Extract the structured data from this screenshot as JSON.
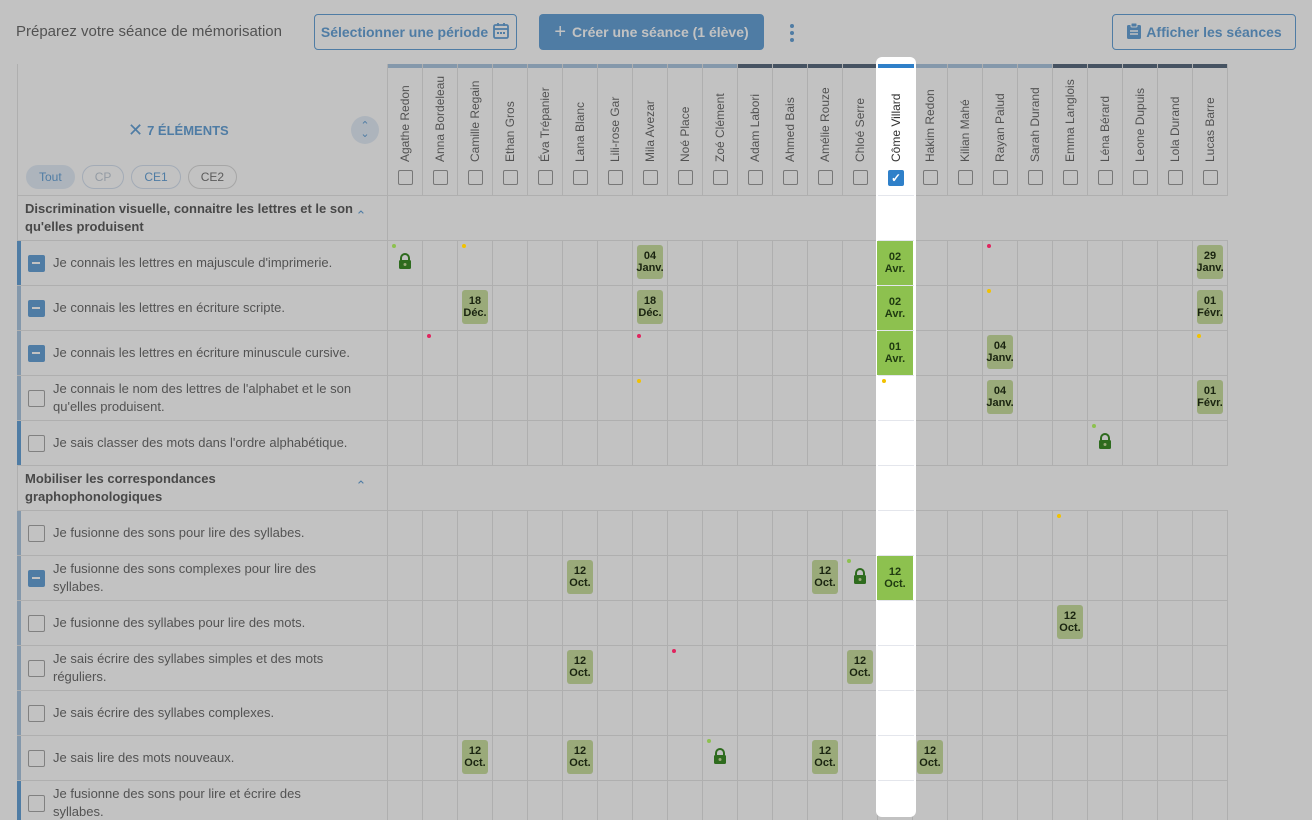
{
  "header": {
    "title": "Préparez votre séance de mémorisation",
    "select_period": "Sélectionner une période",
    "create_session": "Créer une séance (1 élève)",
    "show_sessions": "Afficher les séances"
  },
  "panel": {
    "elements_label": "7 ÉLÉMENTS",
    "filters": [
      "Tout",
      "CP",
      "CE1",
      "CE2"
    ]
  },
  "students": [
    "Agathe Redon",
    "Anna Bordeleau",
    "Camille Regain",
    "Ethan Gros",
    "Éva Trépanier",
    "Lana Blanc",
    "Lili-rose Gar",
    "Mila Avezar",
    "Noé Place",
    "Zoé Clément",
    "Adam Labori",
    "Ahmed Bais",
    "Amélie Rouze",
    "Chloé Serre",
    "Côme Villard",
    "Hakim Redon",
    "Kilian Mahé",
    "Rayan Palud",
    "Sarah Durand",
    "Emma Langlois",
    "Léna Bérard",
    "Leone Dupuis",
    "Lola Durand",
    "Lucas Barre"
  ],
  "selected_student_index": 14,
  "rows": [
    {
      "type": "group",
      "label": "Discrimination visuelle, connaitre les lettres et le son qu'elles produisent"
    },
    {
      "type": "item",
      "label": "Je connais les lettres en majuscule d'imprimerie.",
      "state": "indeterminate"
    },
    {
      "type": "item",
      "label": "Je connais les lettres en écriture scripte.",
      "state": "indeterminate"
    },
    {
      "type": "item",
      "label": "Je connais les lettres en écriture minuscule cursive.",
      "state": "indeterminate"
    },
    {
      "type": "item",
      "label": "Je connais le nom des lettres de l'alphabet et le son qu'elles produisent.",
      "state": "unchecked"
    },
    {
      "type": "item",
      "label": "Je sais classer des mots dans l'ordre alphabétique.",
      "state": "unchecked"
    },
    {
      "type": "group",
      "label": "Mobiliser les correspondances graphophonologiques"
    },
    {
      "type": "item",
      "label": "Je fusionne des sons pour lire des syllabes.",
      "state": "unchecked"
    },
    {
      "type": "item",
      "label": "Je fusionne des sons complexes pour lire des syllabes.",
      "state": "indeterminate"
    },
    {
      "type": "item",
      "label": "Je fusionne des syllabes pour lire des mots.",
      "state": "unchecked"
    },
    {
      "type": "item",
      "label": "Je sais écrire des syllabes simples et des mots réguliers.",
      "state": "unchecked"
    },
    {
      "type": "item",
      "label": "Je sais écrire des syllabes complexes.",
      "state": "unchecked"
    },
    {
      "type": "item",
      "label": "Je sais lire des mots nouveaux.",
      "state": "unchecked"
    },
    {
      "type": "item",
      "label": "Je fusionne des sons pour lire et écrire des syllabes.",
      "state": "unchecked"
    }
  ],
  "badges": [
    {
      "row": 1,
      "col": 7,
      "day": "04",
      "month": "Janv."
    },
    {
      "row": 1,
      "col": 14,
      "day": "02",
      "month": "Avr."
    },
    {
      "row": 1,
      "col": 23,
      "day": "29",
      "month": "Janv."
    },
    {
      "row": 2,
      "col": 2,
      "day": "18",
      "month": "Déc."
    },
    {
      "row": 2,
      "col": 7,
      "day": "18",
      "month": "Déc."
    },
    {
      "row": 2,
      "col": 14,
      "day": "02",
      "month": "Avr."
    },
    {
      "row": 2,
      "col": 23,
      "day": "01",
      "month": "Févr."
    },
    {
      "row": 3,
      "col": 14,
      "day": "01",
      "month": "Avr."
    },
    {
      "row": 3,
      "col": 17,
      "day": "04",
      "month": "Janv."
    },
    {
      "row": 4,
      "col": 17,
      "day": "04",
      "month": "Janv."
    },
    {
      "row": 4,
      "col": 23,
      "day": "01",
      "month": "Févr."
    },
    {
      "row": 8,
      "col": 5,
      "day": "12",
      "month": "Oct."
    },
    {
      "row": 8,
      "col": 12,
      "day": "12",
      "month": "Oct."
    },
    {
      "row": 8,
      "col": 14,
      "day": "12",
      "month": "Oct."
    },
    {
      "row": 9,
      "col": 19,
      "day": "12",
      "month": "Oct."
    },
    {
      "row": 10,
      "col": 5,
      "day": "12",
      "month": "Oct."
    },
    {
      "row": 10,
      "col": 13,
      "day": "12",
      "month": "Oct."
    },
    {
      "row": 12,
      "col": 2,
      "day": "12",
      "month": "Oct."
    },
    {
      "row": 12,
      "col": 5,
      "day": "12",
      "month": "Oct."
    },
    {
      "row": 12,
      "col": 12,
      "day": "12",
      "month": "Oct."
    },
    {
      "row": 12,
      "col": 15,
      "day": "12",
      "month": "Oct."
    }
  ],
  "locks": [
    {
      "row": 1,
      "col": 0
    },
    {
      "row": 5,
      "col": 20
    },
    {
      "row": 8,
      "col": 13
    },
    {
      "row": 12,
      "col": 9
    }
  ],
  "dots": [
    {
      "row": 1,
      "col": 0,
      "color": "#8dc14f"
    },
    {
      "row": 1,
      "col": 2,
      "color": "#f2c200"
    },
    {
      "row": 1,
      "col": 17,
      "color": "#e0245e"
    },
    {
      "row": 2,
      "col": 17,
      "color": "#f2c200"
    },
    {
      "row": 3,
      "col": 1,
      "color": "#e0245e"
    },
    {
      "row": 3,
      "col": 7,
      "color": "#e0245e"
    },
    {
      "row": 3,
      "col": 23,
      "color": "#f2c200"
    },
    {
      "row": 4,
      "col": 7,
      "color": "#f2c200"
    },
    {
      "row": 4,
      "col": 14,
      "color": "#f2c200"
    },
    {
      "row": 5,
      "col": 20,
      "color": "#8dc14f"
    },
    {
      "row": 7,
      "col": 19,
      "color": "#f2c200"
    },
    {
      "row": 8,
      "col": 13,
      "color": "#8dc14f"
    },
    {
      "row": 10,
      "col": 8,
      "color": "#e0245e"
    },
    {
      "row": 12,
      "col": 9,
      "color": "#8dc14f"
    }
  ],
  "colors": {
    "accent": "#2f80c9",
    "badge": "#8dc14f",
    "topbar_light": "#8fb3d6",
    "topbar_dark": "#1e3550"
  }
}
